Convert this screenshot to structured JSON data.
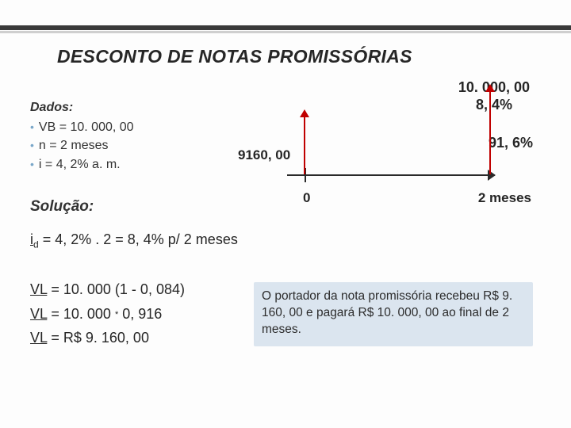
{
  "title": "DESCONTO DE NOTAS PROMISSÓRIAS",
  "dados": {
    "heading": "Dados:",
    "items": [
      "VB = 10. 000, 00",
      "n = 2 meses",
      "i = 4, 2% a. m."
    ]
  },
  "diagram": {
    "top_value": "10. 000, 00",
    "top_percent": "8, 4%",
    "left_value": "9160, 00",
    "right_percent": "91, 6%",
    "zero_label": "0",
    "end_label": "2 meses",
    "colors": {
      "arrow": "#c00000",
      "axis": "#2a2a2a"
    }
  },
  "solucao_label": "Solução:",
  "eq_id": "i",
  "eq_id_sub": "d",
  "eq_rest": " = 4, 2% . 2 = 8, 4% p/ 2 meses",
  "vl": {
    "l1_a": "VL",
    "l1_b": " = 10. 000 (1 - 0, 084)",
    "l2_a": "VL",
    "l2_b": " = 10. 000 ",
    "l2_c": " 0, 916",
    "star": "*",
    "l3_a": "VL",
    "l3_b": " = R$ 9. 160, 00"
  },
  "note": "O portador da nota promissória recebeu R$ 9. 160, 00 e pagará R$ 10. 000, 00 ao final de 2 meses.",
  "style": {
    "bullet_color": "#7aa7c9",
    "note_bg": "#dbe5ef",
    "topbar_color": "#3a3a3a"
  }
}
